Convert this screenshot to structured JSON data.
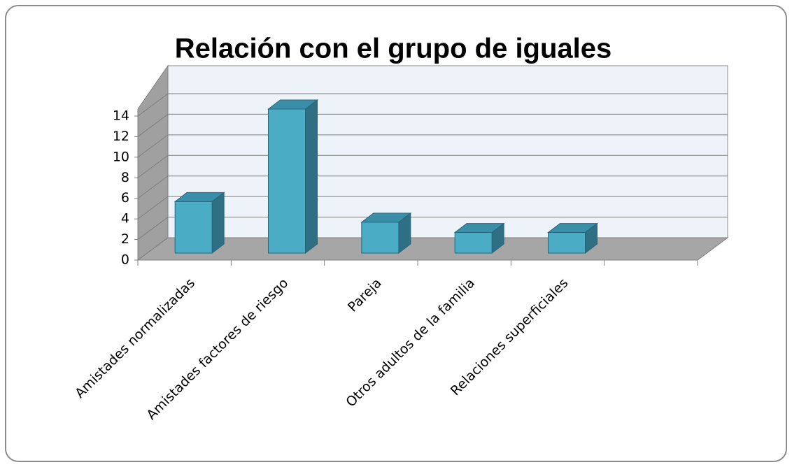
{
  "chart_data": {
    "type": "bar3d",
    "title": "Relación con el grupo de iguales",
    "categories": [
      "Amistades normalizadas",
      "Amistades factores de riesgo",
      "Pareja",
      "Otros adultos de la familia",
      "Relaciones superficiales",
      null
    ],
    "values": [
      5,
      14,
      3,
      2,
      2,
      null
    ],
    "color": "#4bacc6",
    "ylim": [
      0,
      14
    ],
    "yticks": [
      0,
      2,
      4,
      6,
      8,
      10,
      12,
      14
    ],
    "grid": true
  }
}
